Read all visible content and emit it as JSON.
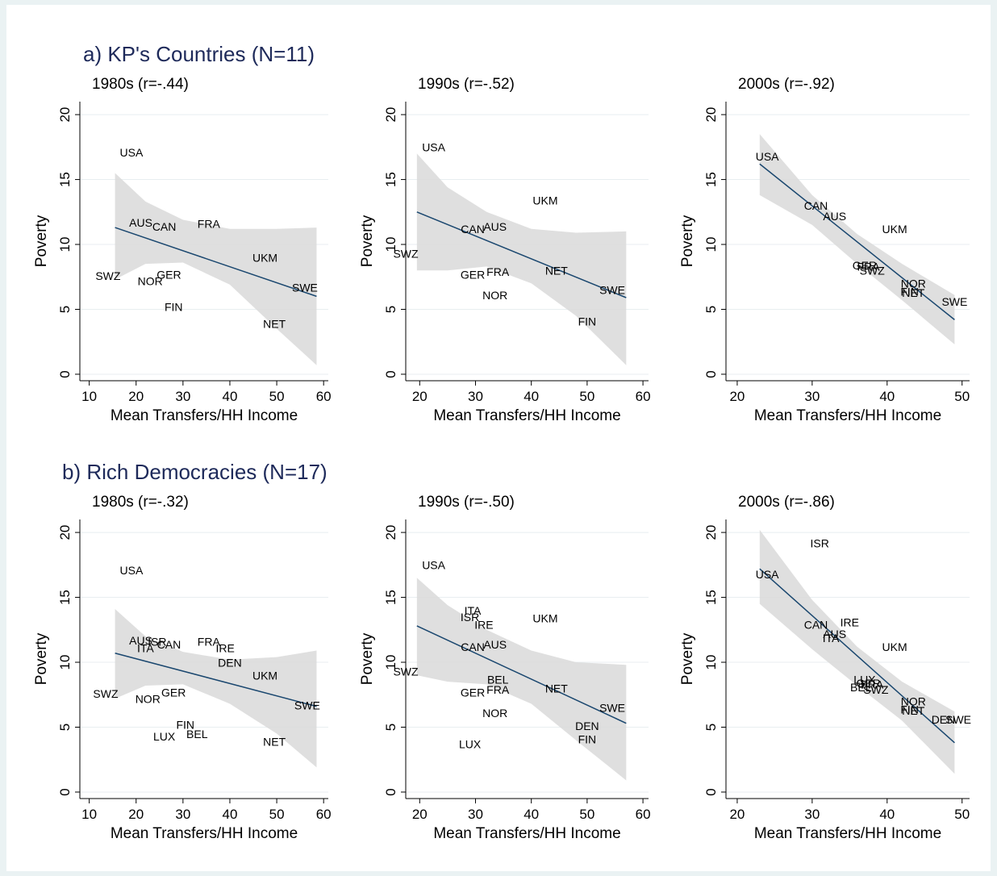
{
  "groups": [
    {
      "title": "a) KP's Countries (N=11)"
    },
    {
      "title": "b) Rich Democracies (N=17)"
    }
  ],
  "chart_data": [
    {
      "type": "scatter",
      "group": 0,
      "title": "1980s (r=-.44)",
      "xlabel": "Mean Transfers/HH Income",
      "ylabel": "Poverty",
      "xlim": [
        8,
        61
      ],
      "ylim": [
        -0.5,
        21
      ],
      "xticks": [
        10,
        20,
        30,
        40,
        50,
        60
      ],
      "yticks": [
        0,
        5,
        10,
        15,
        20
      ],
      "points": [
        {
          "label": "USA",
          "x": 19,
          "y": 17.0
        },
        {
          "label": "AUS",
          "x": 21,
          "y": 11.6
        },
        {
          "label": "CAN",
          "x": 26,
          "y": 11.3
        },
        {
          "label": "FRA",
          "x": 35.5,
          "y": 11.5
        },
        {
          "label": "UKM",
          "x": 47.5,
          "y": 8.9
        },
        {
          "label": "SWZ",
          "x": 14,
          "y": 7.5
        },
        {
          "label": "NOR",
          "x": 23,
          "y": 7.1
        },
        {
          "label": "GER",
          "x": 27,
          "y": 7.6
        },
        {
          "label": "SWE",
          "x": 56,
          "y": 6.6
        },
        {
          "label": "FIN",
          "x": 28,
          "y": 5.1
        },
        {
          "label": "NET",
          "x": 49.5,
          "y": 3.8
        }
      ],
      "fit": {
        "x": [
          15.5,
          58.5
        ],
        "y": [
          11.3,
          6.0
        ]
      },
      "ci": {
        "x": [
          15.5,
          22,
          30,
          40,
          50,
          58.5
        ],
        "upper": [
          15.5,
          13.3,
          11.9,
          11.2,
          11.2,
          11.3
        ],
        "lower": [
          7.3,
          8.5,
          8.6,
          6.9,
          3.5,
          0.7
        ]
      }
    },
    {
      "type": "scatter",
      "group": 0,
      "title": "1990s (r=-.52)",
      "xlabel": "Mean Transfers/HH Income",
      "ylabel": "Poverty",
      "xlim": [
        17.5,
        61
      ],
      "ylim": [
        -0.5,
        21
      ],
      "xticks": [
        20,
        30,
        40,
        50,
        60
      ],
      "yticks": [
        0,
        5,
        10,
        15,
        20
      ],
      "points": [
        {
          "label": "USA",
          "x": 22.5,
          "y": 17.4
        },
        {
          "label": "UKM",
          "x": 42.5,
          "y": 13.3
        },
        {
          "label": "CAN",
          "x": 29.5,
          "y": 11.1
        },
        {
          "label": "AUS",
          "x": 33.5,
          "y": 11.3
        },
        {
          "label": "SWZ",
          "x": 17.5,
          "y": 9.2
        },
        {
          "label": "NET",
          "x": 44.5,
          "y": 7.9
        },
        {
          "label": "GER",
          "x": 29.5,
          "y": 7.6
        },
        {
          "label": "FRA",
          "x": 34,
          "y": 7.8
        },
        {
          "label": "SWE",
          "x": 54.5,
          "y": 6.4
        },
        {
          "label": "NOR",
          "x": 33.5,
          "y": 6.0
        },
        {
          "label": "FIN",
          "x": 50,
          "y": 4.0
        }
      ],
      "fit": {
        "x": [
          19.5,
          57
        ],
        "y": [
          12.5,
          5.9
        ]
      },
      "ci": {
        "x": [
          19.5,
          25,
          32,
          40,
          48,
          57
        ],
        "upper": [
          17.0,
          14.4,
          12.5,
          11.2,
          10.9,
          11.0
        ],
        "lower": [
          8.0,
          8.0,
          8.3,
          7.0,
          4.5,
          0.7
        ]
      }
    },
    {
      "type": "scatter",
      "group": 0,
      "title": "2000s (r=-.92)",
      "xlabel": "Mean Transfers/HH Income",
      "ylabel": "Poverty",
      "xlim": [
        18.5,
        51
      ],
      "ylim": [
        -0.5,
        21
      ],
      "xticks": [
        20,
        30,
        40,
        50
      ],
      "yticks": [
        0,
        5,
        10,
        15,
        20
      ],
      "points": [
        {
          "label": "USA",
          "x": 24,
          "y": 16.7
        },
        {
          "label": "CAN",
          "x": 30.5,
          "y": 12.9
        },
        {
          "label": "AUS",
          "x": 33,
          "y": 12.1
        },
        {
          "label": "UKM",
          "x": 41,
          "y": 11.1
        },
        {
          "label": "GER",
          "x": 37,
          "y": 8.3
        },
        {
          "label": "FRA",
          "x": 37.5,
          "y": 8.2
        },
        {
          "label": "SWZ",
          "x": 38,
          "y": 7.9
        },
        {
          "label": "NOR",
          "x": 43.5,
          "y": 6.9
        },
        {
          "label": "FIN",
          "x": 43,
          "y": 6.3
        },
        {
          "label": "NET",
          "x": 43.5,
          "y": 6.2
        },
        {
          "label": "SWE",
          "x": 49,
          "y": 5.5
        }
      ],
      "fit": {
        "x": [
          23,
          49
        ],
        "y": [
          16.2,
          4.2
        ]
      },
      "ci": {
        "x": [
          23,
          30,
          36,
          42,
          49
        ],
        "upper": [
          18.5,
          13.8,
          10.8,
          8.5,
          6.1
        ],
        "lower": [
          13.8,
          11.5,
          8.5,
          5.7,
          2.3
        ]
      }
    },
    {
      "type": "scatter",
      "group": 1,
      "title": "1980s (r=-.32)",
      "xlabel": "Mean Transfers/HH Income",
      "ylabel": "Poverty",
      "xlim": [
        8,
        61
      ],
      "ylim": [
        -0.5,
        21
      ],
      "xticks": [
        10,
        20,
        30,
        40,
        50,
        60
      ],
      "yticks": [
        0,
        5,
        10,
        15,
        20
      ],
      "points": [
        {
          "label": "USA",
          "x": 19,
          "y": 17.0
        },
        {
          "label": "AUS",
          "x": 21,
          "y": 11.6
        },
        {
          "label": "ISR",
          "x": 24.5,
          "y": 11.5
        },
        {
          "label": "ITA",
          "x": 22,
          "y": 11.0
        },
        {
          "label": "CAN",
          "x": 27,
          "y": 11.3
        },
        {
          "label": "FRA",
          "x": 35.5,
          "y": 11.5
        },
        {
          "label": "IRE",
          "x": 39,
          "y": 11.0
        },
        {
          "label": "DEN",
          "x": 40,
          "y": 9.9
        },
        {
          "label": "UKM",
          "x": 47.5,
          "y": 8.9
        },
        {
          "label": "SWZ",
          "x": 13.5,
          "y": 7.5
        },
        {
          "label": "NOR",
          "x": 22.5,
          "y": 7.1
        },
        {
          "label": "GER",
          "x": 28,
          "y": 7.6
        },
        {
          "label": "SWE",
          "x": 56.5,
          "y": 6.6
        },
        {
          "label": "FIN",
          "x": 30.5,
          "y": 5.1
        },
        {
          "label": "LUX",
          "x": 26,
          "y": 4.2
        },
        {
          "label": "BEL",
          "x": 33,
          "y": 4.4
        },
        {
          "label": "NET",
          "x": 49.5,
          "y": 3.8
        }
      ],
      "fit": {
        "x": [
          15.5,
          58.5
        ],
        "y": [
          10.7,
          6.6
        ]
      },
      "ci": {
        "x": [
          15.5,
          22,
          30,
          40,
          50,
          58.5
        ],
        "upper": [
          14.1,
          12.0,
          10.8,
          10.2,
          10.4,
          10.9
        ],
        "lower": [
          7.2,
          8.2,
          8.3,
          6.8,
          4.5,
          1.9
        ]
      }
    },
    {
      "type": "scatter",
      "group": 1,
      "title": "1990s (r=-.50)",
      "xlabel": "Mean Transfers/HH Income",
      "ylabel": "Poverty",
      "xlim": [
        17.5,
        61
      ],
      "ylim": [
        -0.5,
        21
      ],
      "xticks": [
        20,
        30,
        40,
        50,
        60
      ],
      "yticks": [
        0,
        5,
        10,
        15,
        20
      ],
      "points": [
        {
          "label": "USA",
          "x": 22.5,
          "y": 17.4
        },
        {
          "label": "ITA",
          "x": 29.5,
          "y": 13.9
        },
        {
          "label": "ISR",
          "x": 29,
          "y": 13.4
        },
        {
          "label": "IRE",
          "x": 31.5,
          "y": 12.8
        },
        {
          "label": "UKM",
          "x": 42.5,
          "y": 13.3
        },
        {
          "label": "CAN",
          "x": 29.5,
          "y": 11.1
        },
        {
          "label": "AUS",
          "x": 33.5,
          "y": 11.3
        },
        {
          "label": "SWZ",
          "x": 17.5,
          "y": 9.2
        },
        {
          "label": "BEL",
          "x": 34,
          "y": 8.6
        },
        {
          "label": "NET",
          "x": 44.5,
          "y": 7.9
        },
        {
          "label": "GER",
          "x": 29.5,
          "y": 7.6
        },
        {
          "label": "FRA",
          "x": 34,
          "y": 7.8
        },
        {
          "label": "SWE",
          "x": 54.5,
          "y": 6.4
        },
        {
          "label": "NOR",
          "x": 33.5,
          "y": 6.0
        },
        {
          "label": "DEN",
          "x": 50,
          "y": 5.0
        },
        {
          "label": "FIN",
          "x": 50,
          "y": 4.0
        },
        {
          "label": "LUX",
          "x": 29,
          "y": 3.6
        }
      ],
      "fit": {
        "x": [
          19.5,
          57
        ],
        "y": [
          12.8,
          5.3
        ]
      },
      "ci": {
        "x": [
          19.5,
          25,
          32,
          40,
          48,
          57
        ],
        "upper": [
          16.5,
          14.4,
          12.5,
          10.9,
          10.0,
          9.8
        ],
        "lower": [
          9.0,
          8.5,
          8.3,
          6.8,
          4.0,
          0.9
        ]
      }
    },
    {
      "type": "scatter",
      "group": 1,
      "title": "2000s (r=-.86)",
      "xlabel": "Mean Transfers/HH Income",
      "ylabel": "Poverty",
      "xlim": [
        18.5,
        51
      ],
      "ylim": [
        -0.5,
        21
      ],
      "xticks": [
        20,
        30,
        40,
        50
      ],
      "yticks": [
        0,
        5,
        10,
        15,
        20
      ],
      "points": [
        {
          "label": "ISR",
          "x": 31,
          "y": 19.1
        },
        {
          "label": "USA",
          "x": 24,
          "y": 16.7
        },
        {
          "label": "CAN",
          "x": 30.5,
          "y": 12.8
        },
        {
          "label": "IRE",
          "x": 35,
          "y": 13.0
        },
        {
          "label": "AUS",
          "x": 33,
          "y": 12.1
        },
        {
          "label": "ITA",
          "x": 32.5,
          "y": 11.8
        },
        {
          "label": "UKM",
          "x": 41,
          "y": 11.1
        },
        {
          "label": "LUX",
          "x": 37,
          "y": 8.6
        },
        {
          "label": "BEL",
          "x": 36.5,
          "y": 8.0
        },
        {
          "label": "GER",
          "x": 37.5,
          "y": 8.3
        },
        {
          "label": "FRA",
          "x": 38,
          "y": 8.2
        },
        {
          "label": "SWZ",
          "x": 38.5,
          "y": 7.8
        },
        {
          "label": "NOR",
          "x": 43.5,
          "y": 6.9
        },
        {
          "label": "FIN",
          "x": 43,
          "y": 6.3
        },
        {
          "label": "NET",
          "x": 43.5,
          "y": 6.2
        },
        {
          "label": "DEN",
          "x": 47.5,
          "y": 5.5
        },
        {
          "label": "SWE",
          "x": 49.5,
          "y": 5.5
        }
      ],
      "fit": {
        "x": [
          23,
          49
        ],
        "y": [
          17.2,
          3.8
        ]
      },
      "ci": {
        "x": [
          23,
          30,
          36,
          42,
          49
        ],
        "upper": [
          20.2,
          14.8,
          11.2,
          8.5,
          6.2
        ],
        "lower": [
          14.5,
          11.0,
          8.2,
          5.5,
          1.4
        ]
      }
    }
  ]
}
